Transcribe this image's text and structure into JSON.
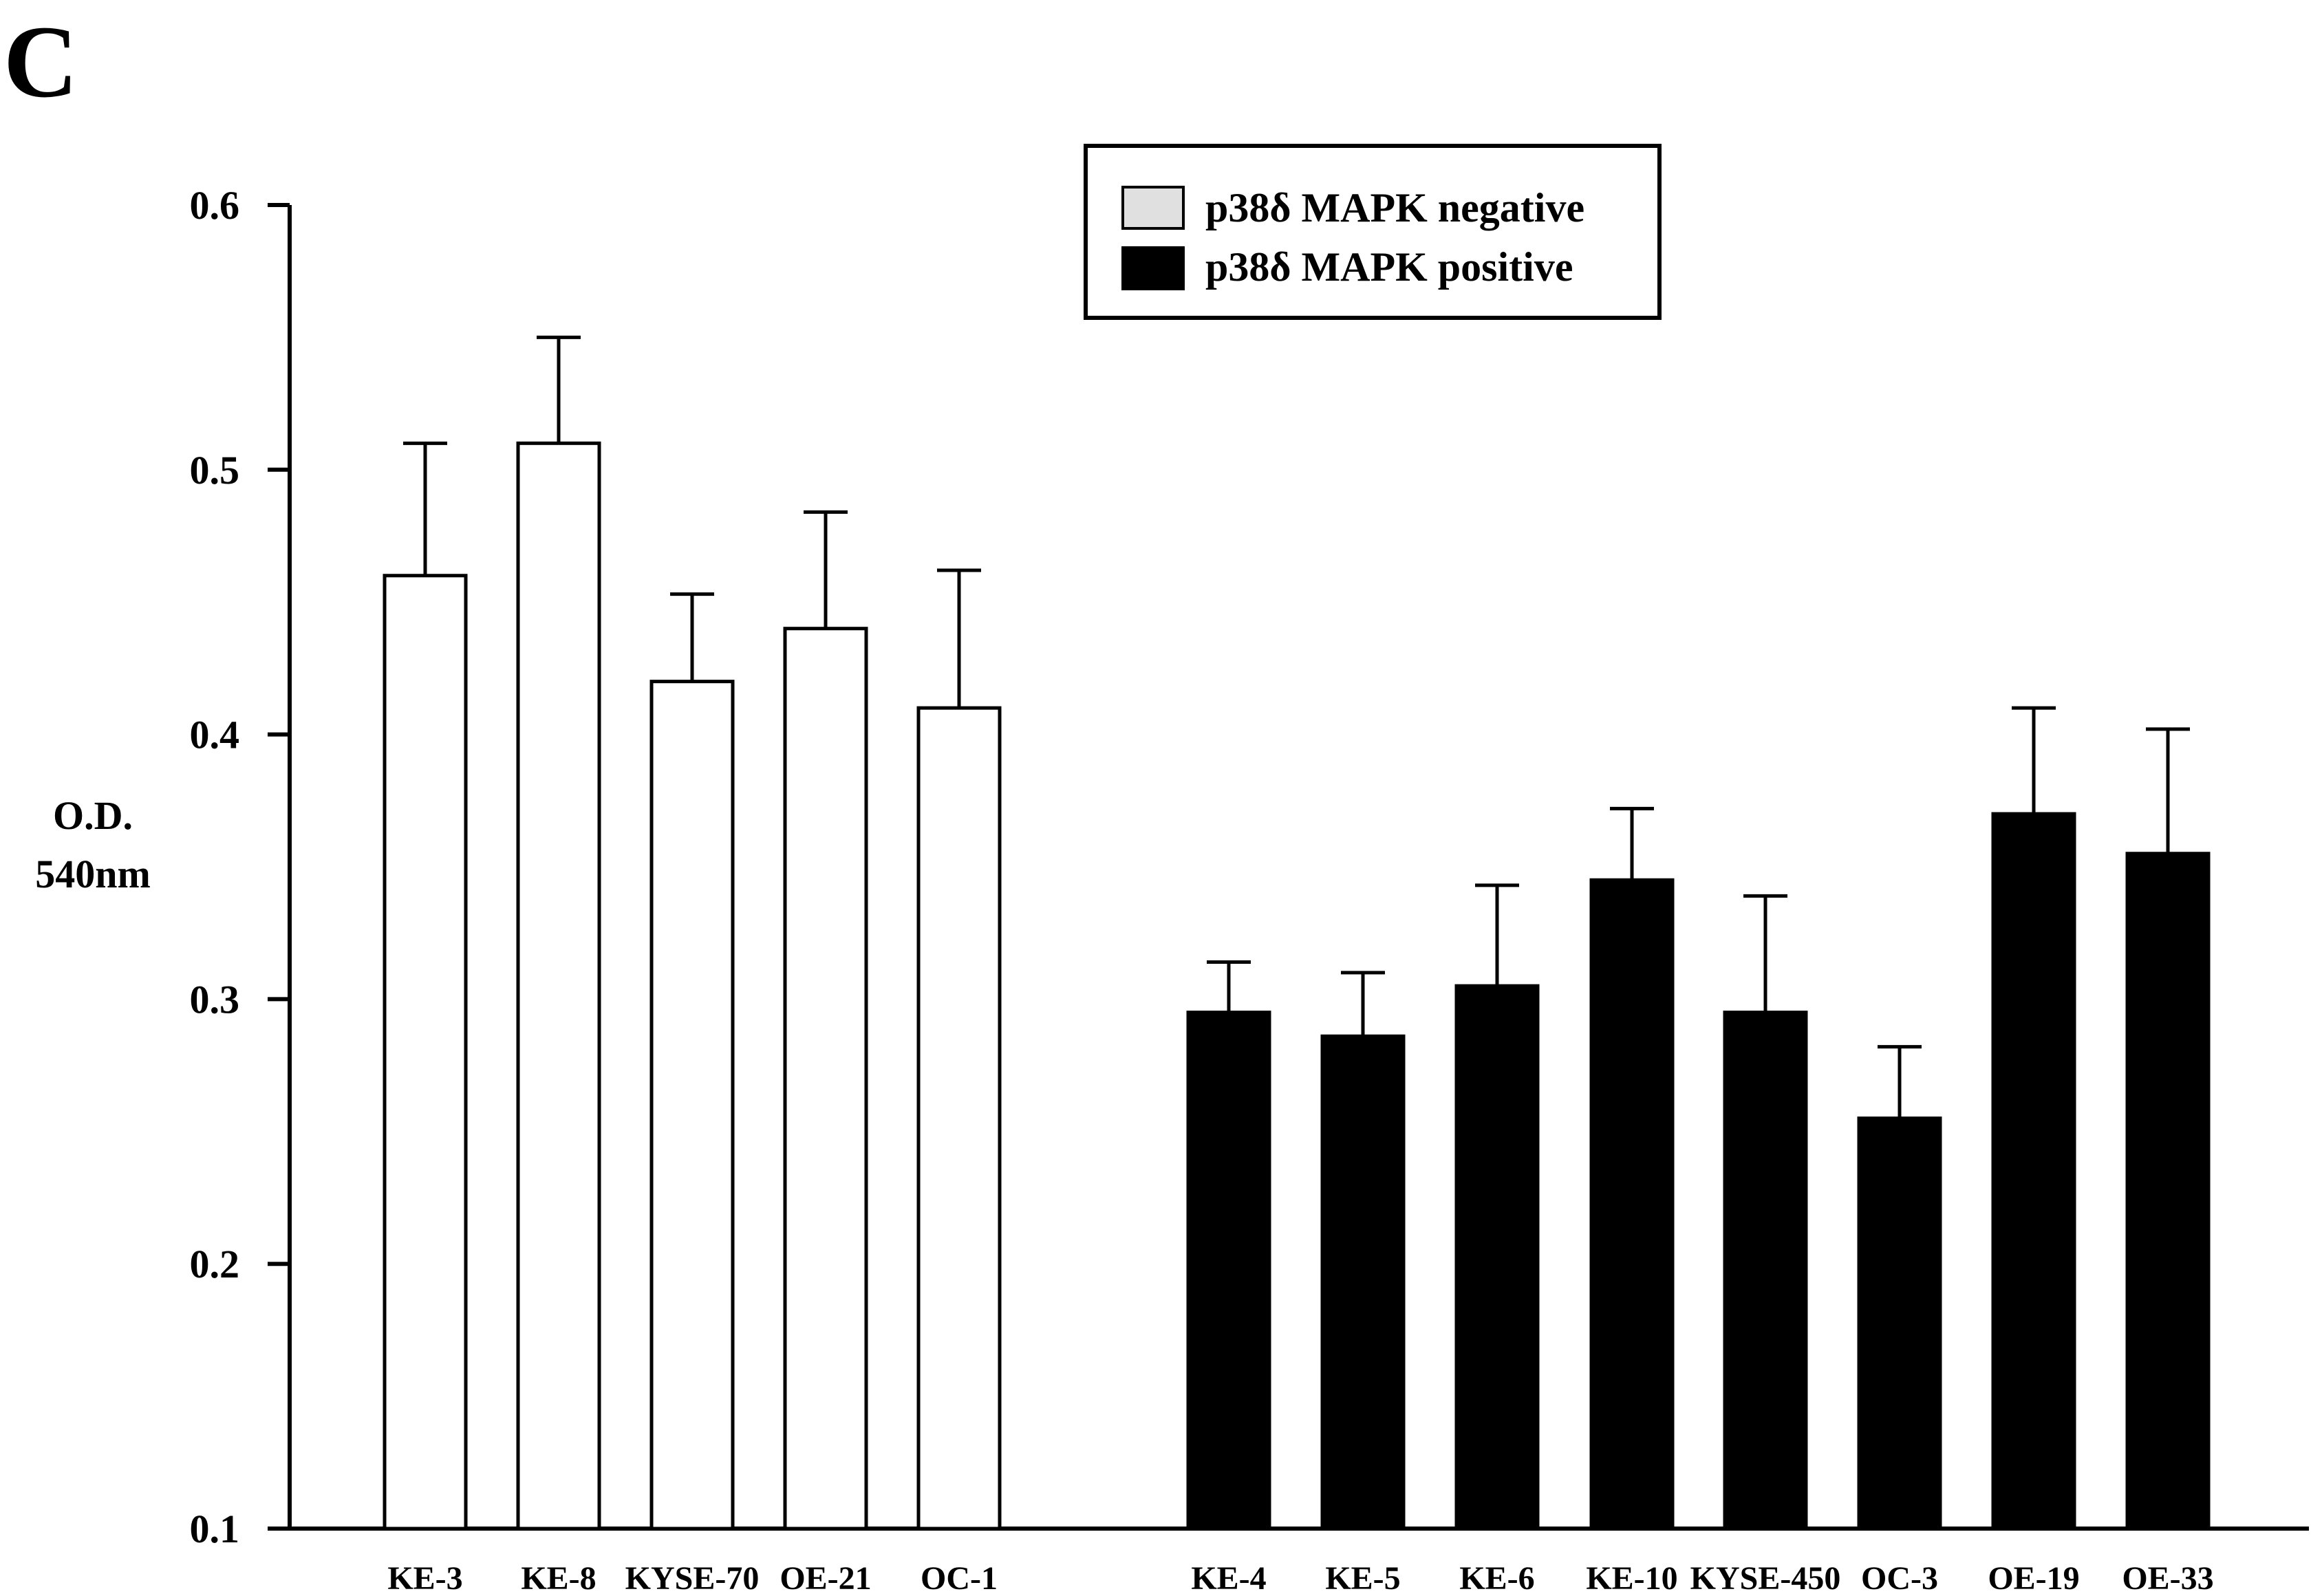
{
  "panel_label": "C",
  "chart_data": {
    "type": "bar",
    "title": "",
    "xlabel": "",
    "ylabel": [
      "O.D.",
      "540nm"
    ],
    "ylim": [
      0.1,
      0.6
    ],
    "yticks": [
      "0.1",
      "0.2",
      "0.3",
      "0.4",
      "0.5",
      "0.6"
    ],
    "grid": false,
    "legend_position": "top-center",
    "series": [
      {
        "name": "p38δ MAPK negative",
        "legend_color": "#e0e0e0",
        "bar_color": "#ffffff",
        "categories": [
          "KE-3",
          "KE-8",
          "KYSE-70",
          "OE-21",
          "OC-1"
        ],
        "values": [
          0.46,
          0.51,
          0.42,
          0.44,
          0.41
        ],
        "errors": [
          0.05,
          0.04,
          0.033,
          0.044,
          0.052
        ]
      },
      {
        "name": "p38δ MAPK positive",
        "legend_color": "#000000",
        "bar_color": "#000000",
        "categories": [
          "KE-4",
          "KE-5",
          "KE-6",
          "KE-10",
          "KYSE-450",
          "OC-3",
          "OE-19",
          "OE-33"
        ],
        "values": [
          0.295,
          0.286,
          0.305,
          0.345,
          0.295,
          0.255,
          0.37,
          0.355
        ],
        "errors": [
          0.019,
          0.024,
          0.038,
          0.027,
          0.044,
          0.027,
          0.04,
          0.047
        ]
      }
    ]
  }
}
